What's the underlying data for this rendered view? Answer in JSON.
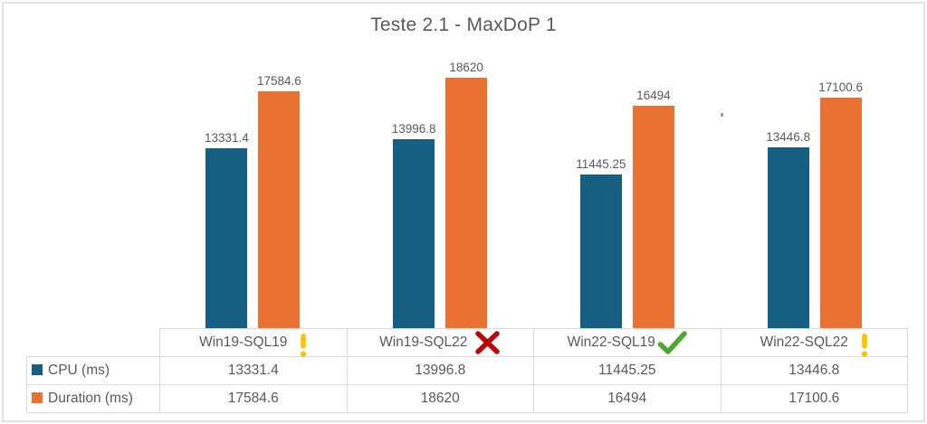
{
  "window": {
    "background": "#FFFFFF",
    "frame_border_color": "#E2E2E2"
  },
  "chart_data": {
    "type": "bar",
    "title": "Teste 2.1 - MaxDoP 1",
    "categories": [
      "Win19-SQL19",
      "Win19-SQL22",
      "Win22-SQL19",
      "Win22-SQL22"
    ],
    "category_status": [
      "warning",
      "fail",
      "pass",
      "warning"
    ],
    "series": [
      {
        "name": "CPU (ms)",
        "color": "#156082",
        "values": [
          13331.4,
          13996.8,
          11445.25,
          13446.8
        ]
      },
      {
        "name": "Duration (ms)",
        "color": "#E97132",
        "values": [
          17584.6,
          18620,
          16494,
          17100.6
        ]
      }
    ],
    "ylim": [
      0,
      20000
    ],
    "data_labels": true,
    "gridlines": false,
    "value_axis_visible": false,
    "legend_position": "data-table-left-column",
    "status_colors": {
      "warning": "#FFC000",
      "fail": "#C00000",
      "pass": "#4EA72E"
    },
    "text_color": "#595959",
    "title_color": "#595959",
    "table_border_color": "#D9D9D9"
  }
}
